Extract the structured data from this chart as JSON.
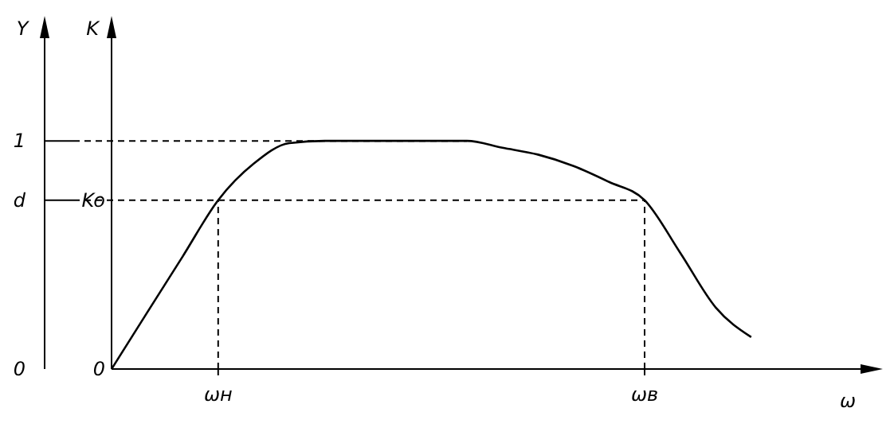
{
  "chart_data": {
    "type": "line",
    "xlabel": "ω",
    "ylabel": "Y",
    "y2label": "K",
    "categories": [
      null,
      null,
      null,
      "ωн",
      null,
      null,
      null,
      null,
      null,
      null,
      null,
      null,
      null,
      null,
      null,
      "ωв",
      null,
      null,
      null,
      null,
      null,
      null
    ],
    "ylim": [
      0,
      1.52
    ],
    "yticks": [
      0,
      {
        "value": 0.74,
        "label": "d"
      },
      1
    ],
    "series": [
      {
        "color": "#000000",
        "values": [
          0,
          0.247,
          0.493,
          0.74,
          0.9,
          0.99,
          1.0,
          1.0,
          1.0,
          1.0,
          1.0,
          0.97,
          0.94,
          0.89,
          0.82,
          0.74,
          0.51,
          0.27,
          0.14,
          null,
          null,
          null
        ]
      }
    ],
    "ref_lines": [
      {
        "axis": "y",
        "value": 1,
        "line_style": "dashed"
      },
      {
        "axis": "y",
        "value": 0.74,
        "line_style": "dashed"
      },
      {
        "axis": "x",
        "value": "ωн",
        "line_style": "dashed"
      },
      {
        "axis": "x",
        "value": "ωв",
        "line_style": "dashed"
      }
    ],
    "annotations": [
      {
        "text": "Ko",
        "y": 0.74
      },
      "0"
    ],
    "grid": false,
    "marker": "none",
    "line_style": "solid"
  }
}
